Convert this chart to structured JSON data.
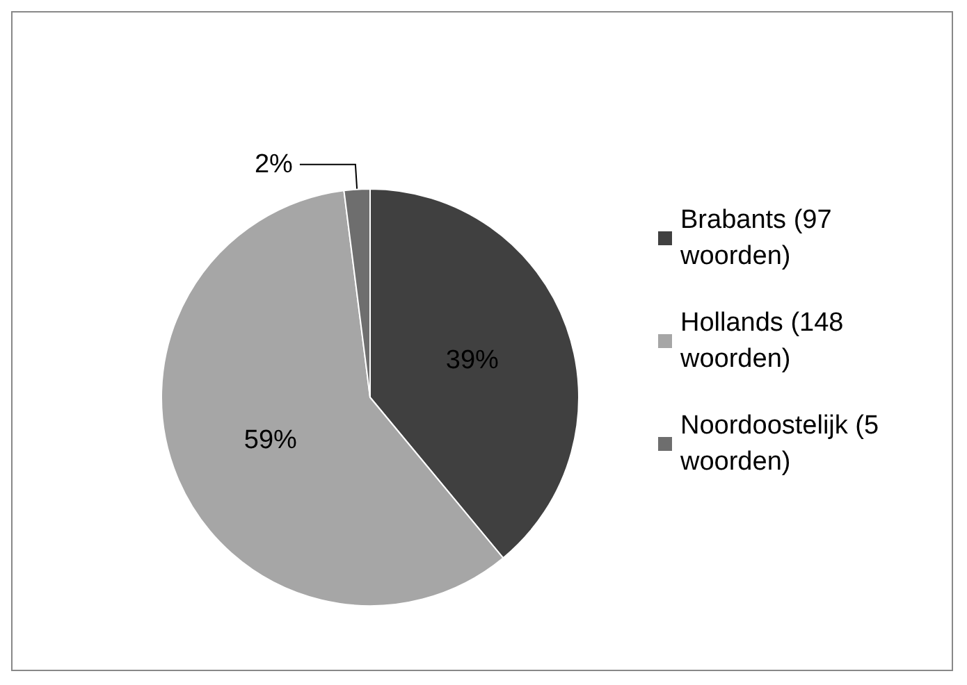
{
  "chart_data": {
    "type": "pie",
    "categories": [
      "Brabants (97 woorden)",
      "Hollands (148 woorden)",
      "Noordoostelijk (5 woorden)"
    ],
    "values": [
      39,
      59,
      2
    ],
    "colors": [
      "#404040",
      "#a6a6a6",
      "#6e6e6e"
    ],
    "value_labels": [
      "39%",
      "59%",
      "2%"
    ],
    "legend": "right"
  }
}
